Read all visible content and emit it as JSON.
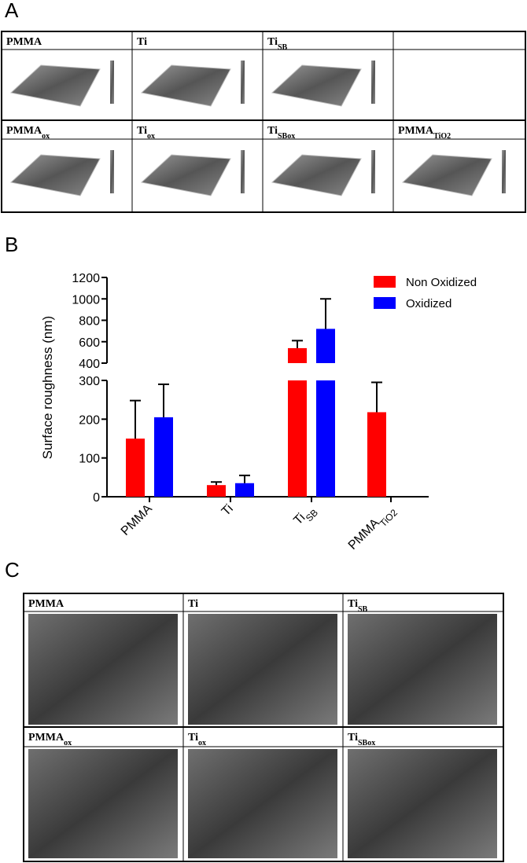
{
  "panel_a": {
    "letter": "A",
    "cells": [
      {
        "text": "PMMA"
      },
      {
        "text": "Ti"
      },
      {
        "text": "Ti",
        "sub": "SB"
      },
      {
        "text": "PMMA",
        "sub": "ox"
      },
      {
        "text": "Ti",
        "sub": "ox"
      },
      {
        "text": "Ti",
        "sub": "SBox"
      },
      {
        "text": "PMMA",
        "sub": "TiO2"
      }
    ]
  },
  "chart_data": {
    "type": "bar",
    "panel_letter": "B",
    "y_label": "Surface roughness (nm)",
    "categories": [
      {
        "text": "PMMA"
      },
      {
        "text": "Ti"
      },
      {
        "text": "Ti",
        "sub": "SB"
      },
      {
        "text": "PMMA",
        "sub": "TiO2"
      }
    ],
    "series": [
      {
        "name": "Non Oxidized",
        "color": "#ff0000",
        "values": [
          150,
          30,
          540,
          218
        ],
        "errors": [
          98,
          8,
          70,
          77
        ]
      },
      {
        "name": "Oxidized",
        "color": "#0000ff",
        "values": [
          205,
          35,
          720,
          null
        ],
        "errors": [
          85,
          20,
          280,
          null
        ]
      }
    ],
    "ylim": [
      0,
      1200
    ],
    "axis_break": [
      300,
      400
    ],
    "yticks": [
      0,
      100,
      200,
      300,
      400,
      600,
      800,
      1000,
      1200
    ],
    "legend": "top-right"
  },
  "panel_c": {
    "letter": "C",
    "cells": [
      {
        "text": "PMMA"
      },
      {
        "text": "Ti"
      },
      {
        "text": "Ti",
        "sub": "SB"
      },
      {
        "text": "PMMA",
        "sub": "ox"
      },
      {
        "text": "Ti",
        "sub": "ox"
      },
      {
        "text": "Ti",
        "sub": "SBox"
      }
    ]
  }
}
